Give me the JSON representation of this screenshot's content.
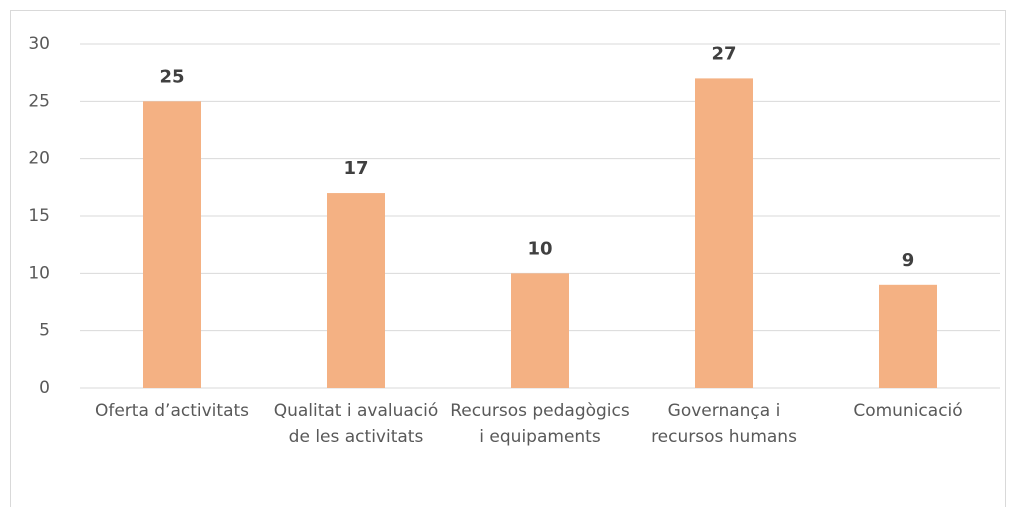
{
  "chart_data": {
    "type": "bar",
    "categories": [
      "Oferta d’activitats",
      "Qualitat i avaluació de les activitats",
      "Recursos pedagògics i equipaments",
      "Governança i recursos humans",
      "Comunicació"
    ],
    "values": [
      25,
      17,
      10,
      27,
      9
    ],
    "color": "#f4b183",
    "ylim": [
      0,
      30
    ],
    "yticks": [
      0,
      5,
      10,
      15,
      20,
      25,
      30
    ],
    "grid": true
  }
}
